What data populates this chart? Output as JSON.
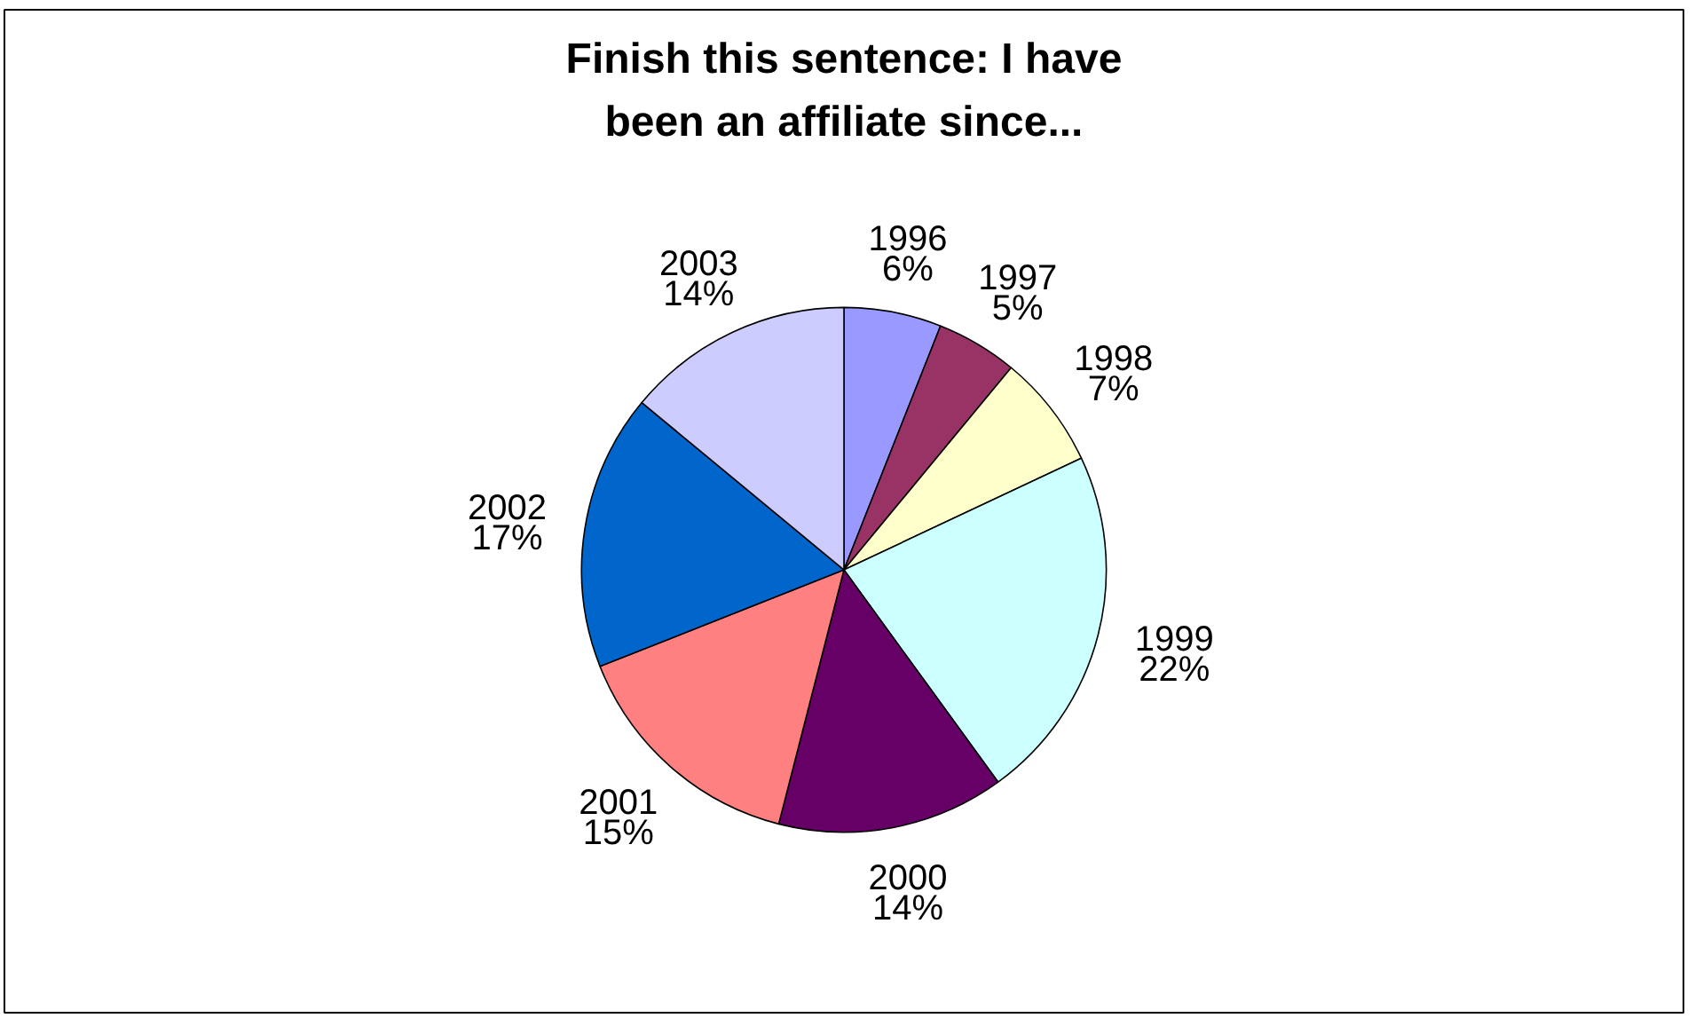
{
  "chart_data": {
    "type": "pie",
    "title": "Finish this sentence: I have been an affiliate since...",
    "categories": [
      "1996",
      "1997",
      "1998",
      "1999",
      "2000",
      "2001",
      "2002",
      "2003"
    ],
    "values": [
      6,
      5,
      7,
      22,
      14,
      15,
      17,
      14
    ],
    "value_labels": [
      "6%",
      "5%",
      "7%",
      "22%",
      "14%",
      "15%",
      "17%",
      "14%"
    ],
    "colors": [
      "#9999ff",
      "#993366",
      "#ffffcc",
      "#ccffff",
      "#660066",
      "#ff8080",
      "#0066cc",
      "#ccccff"
    ]
  }
}
